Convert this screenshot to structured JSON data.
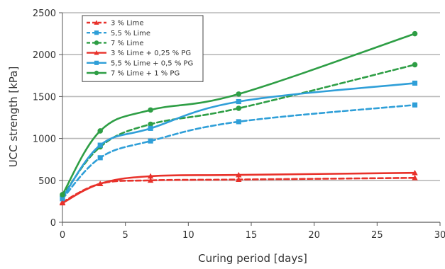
{
  "chart_data": {
    "type": "line",
    "title": "",
    "xlabel": "Curing period [days]",
    "ylabel": "UCC strength [kPa]",
    "xlim": [
      0,
      30
    ],
    "ylim": [
      0,
      2500
    ],
    "x_ticks": [
      0,
      5,
      10,
      15,
      20,
      25,
      30
    ],
    "y_ticks": [
      0,
      500,
      1000,
      1500,
      2000,
      2500
    ],
    "grid": "horizontal",
    "legend_position": "top-left",
    "series": [
      {
        "name": "3 % Lime",
        "color": "#e8312a",
        "line": "dashed",
        "marker": "triangle",
        "points": [
          [
            0,
            240
          ],
          [
            3,
            460
          ],
          [
            7,
            500
          ],
          [
            14,
            510
          ],
          [
            28,
            530
          ]
        ]
      },
      {
        "name": "5,5 % Lime",
        "color": "#2f9fd8",
        "line": "dashed",
        "marker": "square",
        "points": [
          [
            0,
            280
          ],
          [
            3,
            770
          ],
          [
            7,
            970
          ],
          [
            14,
            1200
          ],
          [
            28,
            1400
          ]
        ]
      },
      {
        "name": "7 % Lime",
        "color": "#2e9e45",
        "line": "dashed",
        "marker": "circle",
        "points": [
          [
            0,
            310
          ],
          [
            3,
            900
          ],
          [
            7,
            1170
          ],
          [
            14,
            1360
          ],
          [
            28,
            1880
          ]
        ]
      },
      {
        "name": "3 % Lime + 0,25 % PG",
        "color": "#e8312a",
        "line": "solid",
        "marker": "triangle",
        "points": [
          [
            0,
            230
          ],
          [
            3,
            460
          ],
          [
            7,
            550
          ],
          [
            14,
            565
          ],
          [
            28,
            590
          ]
        ]
      },
      {
        "name": "5,5 % Lime + 0,5 % PG",
        "color": "#2f9fd8",
        "line": "solid",
        "marker": "square",
        "points": [
          [
            0,
            290
          ],
          [
            3,
            920
          ],
          [
            7,
            1120
          ],
          [
            14,
            1440
          ],
          [
            28,
            1660
          ]
        ]
      },
      {
        "name": "7 % Lime + 1 % PG",
        "color": "#2e9e45",
        "line": "solid",
        "marker": "circle",
        "points": [
          [
            0,
            330
          ],
          [
            3,
            1090
          ],
          [
            7,
            1340
          ],
          [
            14,
            1530
          ],
          [
            28,
            2250
          ]
        ]
      }
    ]
  }
}
